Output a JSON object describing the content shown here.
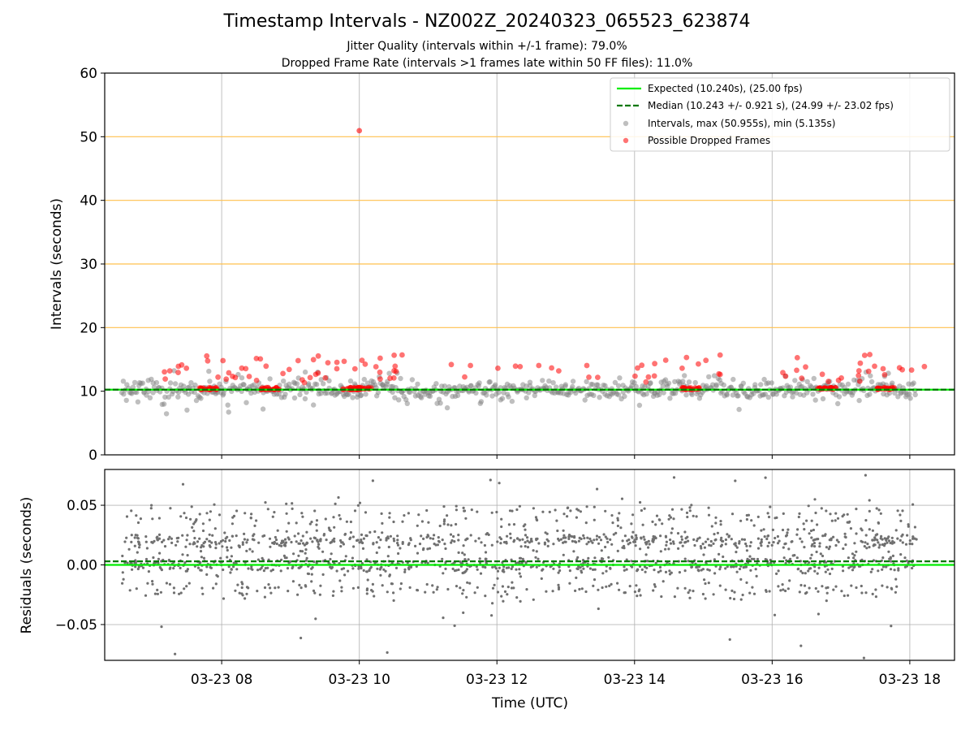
{
  "chart_data": [
    {
      "type": "scatter",
      "title": "Timestamp Intervals - NZ002Z_20240323_065523_623874",
      "subtitle_lines": [
        "Jitter Quality (intervals within +/-1 frame): 79.0%",
        "Dropped Frame Rate (intervals >1 frames late within 50 FF files): 11.0%"
      ],
      "ylabel": "Intervals (seconds)",
      "ylim": [
        0,
        60
      ],
      "yticks": [
        0,
        10,
        20,
        30,
        40,
        50,
        60
      ],
      "ytick_labels": [
        "0",
        "10",
        "20",
        "30",
        "40",
        "50",
        "60"
      ],
      "xlim_hours": [
        6.3,
        18.65
      ],
      "grid": true,
      "reference_lines": [
        20,
        30,
        40,
        50
      ],
      "legend_position": "top-right",
      "legend": [
        "Expected (10.240s), (25.00 fps)",
        "Median (10.243 +/- 0.921 s), (24.99 +/- 23.02 fps)",
        "Intervals, max (50.955s), min (5.135s)",
        "Possible Dropped Frames"
      ],
      "expected": 10.24,
      "median": 10.243,
      "interval_max": 50.955,
      "interval_min": 5.135,
      "outlier": {
        "x": 10.0,
        "y": 50.955
      },
      "dropped_clusters_hours": [
        7.8,
        8.7,
        9.9,
        10.05,
        14.8,
        16.8,
        17.65
      ],
      "colors": {
        "expected": "#00ee00",
        "median": "#007700",
        "intervals": "#808080",
        "dropped": "#ff0000",
        "ref": "#ffc04d"
      }
    },
    {
      "type": "scatter",
      "ylabel": "Residuals (seconds)",
      "xlabel": "Time (UTC)",
      "ylim": [
        -0.08,
        0.08
      ],
      "yticks": [
        -0.05,
        0.0,
        0.05
      ],
      "ytick_labels": [
        "−0.05",
        "0.00",
        "0.05"
      ],
      "xticks_hours": [
        8,
        10,
        12,
        14,
        16,
        18
      ],
      "xtick_labels": [
        "03-23 08",
        "03-23 10",
        "03-23 12",
        "03-23 14",
        "03-23 16",
        "03-23 18"
      ],
      "data_range_hours": [
        6.55,
        18.1
      ],
      "median_residual": 0.003,
      "grid": true
    }
  ]
}
